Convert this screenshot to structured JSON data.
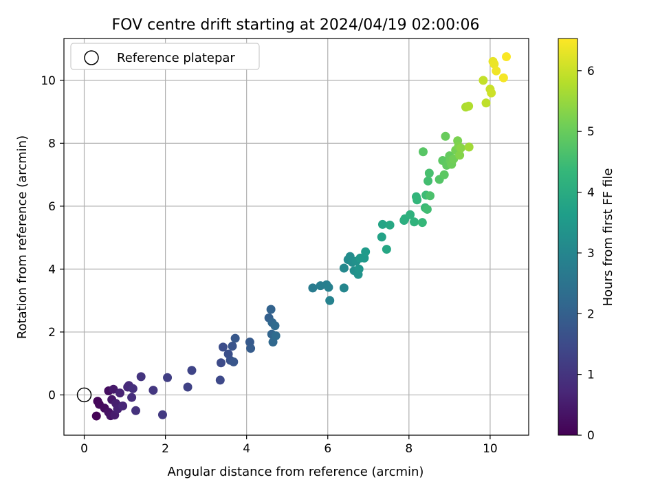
{
  "chart_data": {
    "type": "scatter",
    "title": "FOV centre drift starting at 2024/04/19 02:00:06",
    "xlabel": "Angular distance from reference (arcmin)",
    "ylabel": "Rotation from reference (arcmin)",
    "xlim": [
      -0.5,
      10.95
    ],
    "ylim": [
      -1.28,
      11.33
    ],
    "xticks": [
      0,
      2,
      4,
      6,
      8,
      10
    ],
    "yticks": [
      0,
      2,
      4,
      6,
      8,
      10
    ],
    "grid": true,
    "legend": {
      "position": "top-left",
      "entries": [
        "Reference platepar"
      ]
    },
    "reference_point": {
      "label": "Reference platepar",
      "x": 0,
      "y": 0
    },
    "colorbar": {
      "label": "Hours from first FF file",
      "colormap": "viridis",
      "range": [
        0,
        6.53
      ],
      "ticks": [
        0,
        1,
        2,
        3,
        4,
        5,
        6
      ]
    },
    "colormap_stops": [
      "#440154",
      "#482878",
      "#3e4989",
      "#31688e",
      "#26828e",
      "#1f9e89",
      "#35b779",
      "#6ece58",
      "#b5de2b",
      "#fde725"
    ],
    "points": [
      {
        "x": 0.3,
        "y": -0.67,
        "h": 0.05
      },
      {
        "x": 0.33,
        "y": -0.2,
        "h": 0.1
      },
      {
        "x": 0.37,
        "y": -0.3,
        "h": 0.15
      },
      {
        "x": 0.5,
        "y": -0.42,
        "h": 0.2
      },
      {
        "x": 0.6,
        "y": 0.13,
        "h": 0.25
      },
      {
        "x": 0.6,
        "y": -0.55,
        "h": 0.3
      },
      {
        "x": 0.65,
        "y": -0.66,
        "h": 0.35
      },
      {
        "x": 0.68,
        "y": -0.15,
        "h": 0.4
      },
      {
        "x": 0.72,
        "y": 0.18,
        "h": 0.45
      },
      {
        "x": 0.75,
        "y": -0.64,
        "h": 0.5
      },
      {
        "x": 0.78,
        "y": -0.27,
        "h": 0.55
      },
      {
        "x": 0.82,
        "y": -0.45,
        "h": 0.6
      },
      {
        "x": 0.88,
        "y": 0.06,
        "h": 0.65
      },
      {
        "x": 0.95,
        "y": -0.35,
        "h": 0.7
      },
      {
        "x": 1.07,
        "y": 0.25,
        "h": 0.75
      },
      {
        "x": 1.1,
        "y": 0.3,
        "h": 0.8
      },
      {
        "x": 1.17,
        "y": -0.08,
        "h": 0.85
      },
      {
        "x": 1.2,
        "y": 0.2,
        "h": 0.9
      },
      {
        "x": 1.27,
        "y": -0.5,
        "h": 0.95
      },
      {
        "x": 1.4,
        "y": 0.58,
        "h": 1.0
      },
      {
        "x": 1.7,
        "y": 0.15,
        "h": 1.05
      },
      {
        "x": 1.93,
        "y": -0.63,
        "h": 1.1
      },
      {
        "x": 2.05,
        "y": 0.55,
        "h": 1.2
      },
      {
        "x": 2.55,
        "y": 0.25,
        "h": 1.3
      },
      {
        "x": 2.65,
        "y": 0.78,
        "h": 1.35
      },
      {
        "x": 3.35,
        "y": 0.47,
        "h": 1.45
      },
      {
        "x": 3.37,
        "y": 1.02,
        "h": 1.5
      },
      {
        "x": 3.42,
        "y": 1.52,
        "h": 1.55
      },
      {
        "x": 3.55,
        "y": 1.3,
        "h": 1.6
      },
      {
        "x": 3.6,
        "y": 1.1,
        "h": 1.65
      },
      {
        "x": 3.65,
        "y": 1.55,
        "h": 1.7
      },
      {
        "x": 3.68,
        "y": 1.05,
        "h": 1.75
      },
      {
        "x": 3.72,
        "y": 1.8,
        "h": 1.8
      },
      {
        "x": 4.08,
        "y": 1.68,
        "h": 1.85
      },
      {
        "x": 4.1,
        "y": 1.48,
        "h": 1.9
      },
      {
        "x": 4.55,
        "y": 2.45,
        "h": 2.0
      },
      {
        "x": 4.6,
        "y": 2.72,
        "h": 2.05
      },
      {
        "x": 4.62,
        "y": 1.93,
        "h": 2.1
      },
      {
        "x": 4.63,
        "y": 2.3,
        "h": 2.15
      },
      {
        "x": 4.65,
        "y": 1.68,
        "h": 2.2
      },
      {
        "x": 4.7,
        "y": 2.2,
        "h": 2.25
      },
      {
        "x": 4.72,
        "y": 1.88,
        "h": 2.3
      },
      {
        "x": 5.63,
        "y": 3.4,
        "h": 2.7
      },
      {
        "x": 5.82,
        "y": 3.47,
        "h": 2.75
      },
      {
        "x": 5.97,
        "y": 3.5,
        "h": 2.8
      },
      {
        "x": 6.02,
        "y": 3.42,
        "h": 2.85
      },
      {
        "x": 6.05,
        "y": 3.0,
        "h": 2.9
      },
      {
        "x": 6.4,
        "y": 3.4,
        "h": 3.0
      },
      {
        "x": 6.4,
        "y": 4.03,
        "h": 3.05
      },
      {
        "x": 6.5,
        "y": 4.3,
        "h": 3.1
      },
      {
        "x": 6.55,
        "y": 4.4,
        "h": 3.15
      },
      {
        "x": 6.6,
        "y": 4.22,
        "h": 3.2
      },
      {
        "x": 6.65,
        "y": 3.95,
        "h": 3.25
      },
      {
        "x": 6.7,
        "y": 4.25,
        "h": 3.3
      },
      {
        "x": 6.75,
        "y": 3.83,
        "h": 3.35
      },
      {
        "x": 6.77,
        "y": 4.0,
        "h": 3.4
      },
      {
        "x": 6.8,
        "y": 4.35,
        "h": 3.45
      },
      {
        "x": 6.9,
        "y": 4.35,
        "h": 3.5
      },
      {
        "x": 6.93,
        "y": 4.55,
        "h": 3.55
      },
      {
        "x": 7.33,
        "y": 5.02,
        "h": 3.75
      },
      {
        "x": 7.35,
        "y": 5.42,
        "h": 3.8
      },
      {
        "x": 7.45,
        "y": 4.63,
        "h": 3.85
      },
      {
        "x": 7.53,
        "y": 5.4,
        "h": 3.9
      },
      {
        "x": 7.88,
        "y": 5.55,
        "h": 4.05
      },
      {
        "x": 7.9,
        "y": 5.6,
        "h": 4.1
      },
      {
        "x": 8.03,
        "y": 5.73,
        "h": 4.15
      },
      {
        "x": 8.13,
        "y": 5.5,
        "h": 4.2
      },
      {
        "x": 8.18,
        "y": 6.3,
        "h": 4.25
      },
      {
        "x": 8.2,
        "y": 6.2,
        "h": 4.3
      },
      {
        "x": 8.33,
        "y": 5.48,
        "h": 4.35
      },
      {
        "x": 8.35,
        "y": 7.73,
        "h": 4.8
      },
      {
        "x": 8.4,
        "y": 5.95,
        "h": 4.4
      },
      {
        "x": 8.42,
        "y": 6.35,
        "h": 4.45
      },
      {
        "x": 8.45,
        "y": 5.9,
        "h": 4.5
      },
      {
        "x": 8.47,
        "y": 6.8,
        "h": 4.55
      },
      {
        "x": 8.5,
        "y": 7.05,
        "h": 4.6
      },
      {
        "x": 8.52,
        "y": 6.33,
        "h": 4.65
      },
      {
        "x": 8.75,
        "y": 6.85,
        "h": 4.75
      },
      {
        "x": 8.83,
        "y": 7.45,
        "h": 4.85
      },
      {
        "x": 8.87,
        "y": 7.0,
        "h": 4.85
      },
      {
        "x": 8.9,
        "y": 8.22,
        "h": 5.0
      },
      {
        "x": 8.93,
        "y": 7.3,
        "h": 4.9
      },
      {
        "x": 9.0,
        "y": 7.6,
        "h": 4.95
      },
      {
        "x": 9.02,
        "y": 7.45,
        "h": 5.0
      },
      {
        "x": 9.05,
        "y": 7.33,
        "h": 5.05
      },
      {
        "x": 9.1,
        "y": 7.5,
        "h": 5.1
      },
      {
        "x": 9.15,
        "y": 7.78,
        "h": 5.15
      },
      {
        "x": 9.2,
        "y": 8.08,
        "h": 5.2
      },
      {
        "x": 9.22,
        "y": 7.9,
        "h": 5.25
      },
      {
        "x": 9.25,
        "y": 7.62,
        "h": 5.3
      },
      {
        "x": 9.28,
        "y": 7.85,
        "h": 5.35
      },
      {
        "x": 9.4,
        "y": 9.15,
        "h": 5.7
      },
      {
        "x": 9.47,
        "y": 9.18,
        "h": 5.75
      },
      {
        "x": 9.48,
        "y": 7.88,
        "h": 5.6
      },
      {
        "x": 9.83,
        "y": 10.0,
        "h": 5.95
      },
      {
        "x": 9.9,
        "y": 9.28,
        "h": 5.9
      },
      {
        "x": 10.0,
        "y": 9.72,
        "h": 6.0
      },
      {
        "x": 10.03,
        "y": 9.6,
        "h": 6.05
      },
      {
        "x": 10.07,
        "y": 10.6,
        "h": 6.3
      },
      {
        "x": 10.1,
        "y": 10.52,
        "h": 6.35
      },
      {
        "x": 10.15,
        "y": 10.3,
        "h": 6.4
      },
      {
        "x": 10.33,
        "y": 10.08,
        "h": 6.45
      },
      {
        "x": 10.4,
        "y": 10.75,
        "h": 6.5
      }
    ]
  }
}
